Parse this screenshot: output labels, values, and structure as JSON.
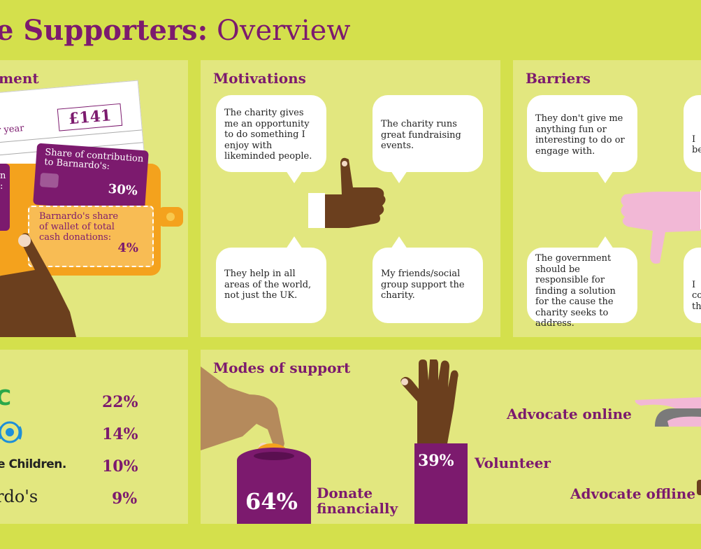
{
  "title": {
    "bold": "e Supporters:",
    "light": "Overview"
  },
  "engagement": {
    "title": "ment",
    "per_year_label": "per year",
    "per_year_value": "£141",
    "share_label": "Share of contribution to Barnardo's:",
    "share_value": "30%",
    "wallet_label": "Barnardo's share of wallet of total cash donations:",
    "wallet_value": "4%",
    "left_card_fragment_1": "n",
    "left_card_fragment_2": ":"
  },
  "motivations": {
    "title": "Motivations",
    "bubbles": [
      "The charity gives me an opportunity to do something I enjoy with likeminded people.",
      "The charity runs great fundraising events.",
      "They help in all areas of the world, not just the UK.",
      "My friends/social group support the charity."
    ]
  },
  "barriers": {
    "title": "Barriers",
    "bubbles": [
      "They don't give me anything fun or interesting to do or engage with.",
      "The government should be responsible for finding a solution for the cause the charity seeks to address.",
      "I\nbe",
      "I\nco\nth"
    ]
  },
  "charities": {
    "rows": [
      {
        "name": "C",
        "value": "22%",
        "color": "#2aa84a"
      },
      {
        "name": "",
        "value": "14%",
        "color": "#1d8fd8"
      },
      {
        "name": "e Children.",
        "value": "10%",
        "color": "#222222"
      },
      {
        "name": "rdo's",
        "value": "9%",
        "color": "#222222"
      }
    ]
  },
  "modes": {
    "title": "Modes of support",
    "donate_pct": "64%",
    "donate_label": "Donate financially",
    "volunteer_pct": "39%",
    "volunteer_label": "Volunteer",
    "advocate_online": "Advocate online",
    "advocate_offline": "Advocate offline"
  },
  "colors": {
    "purple": "#7c1a6e",
    "lime": "#d4e04c",
    "panel": "#e2e77f",
    "orange": "#f4a21d",
    "brown": "#6b3f1e",
    "pink": "#f2b8d6"
  }
}
